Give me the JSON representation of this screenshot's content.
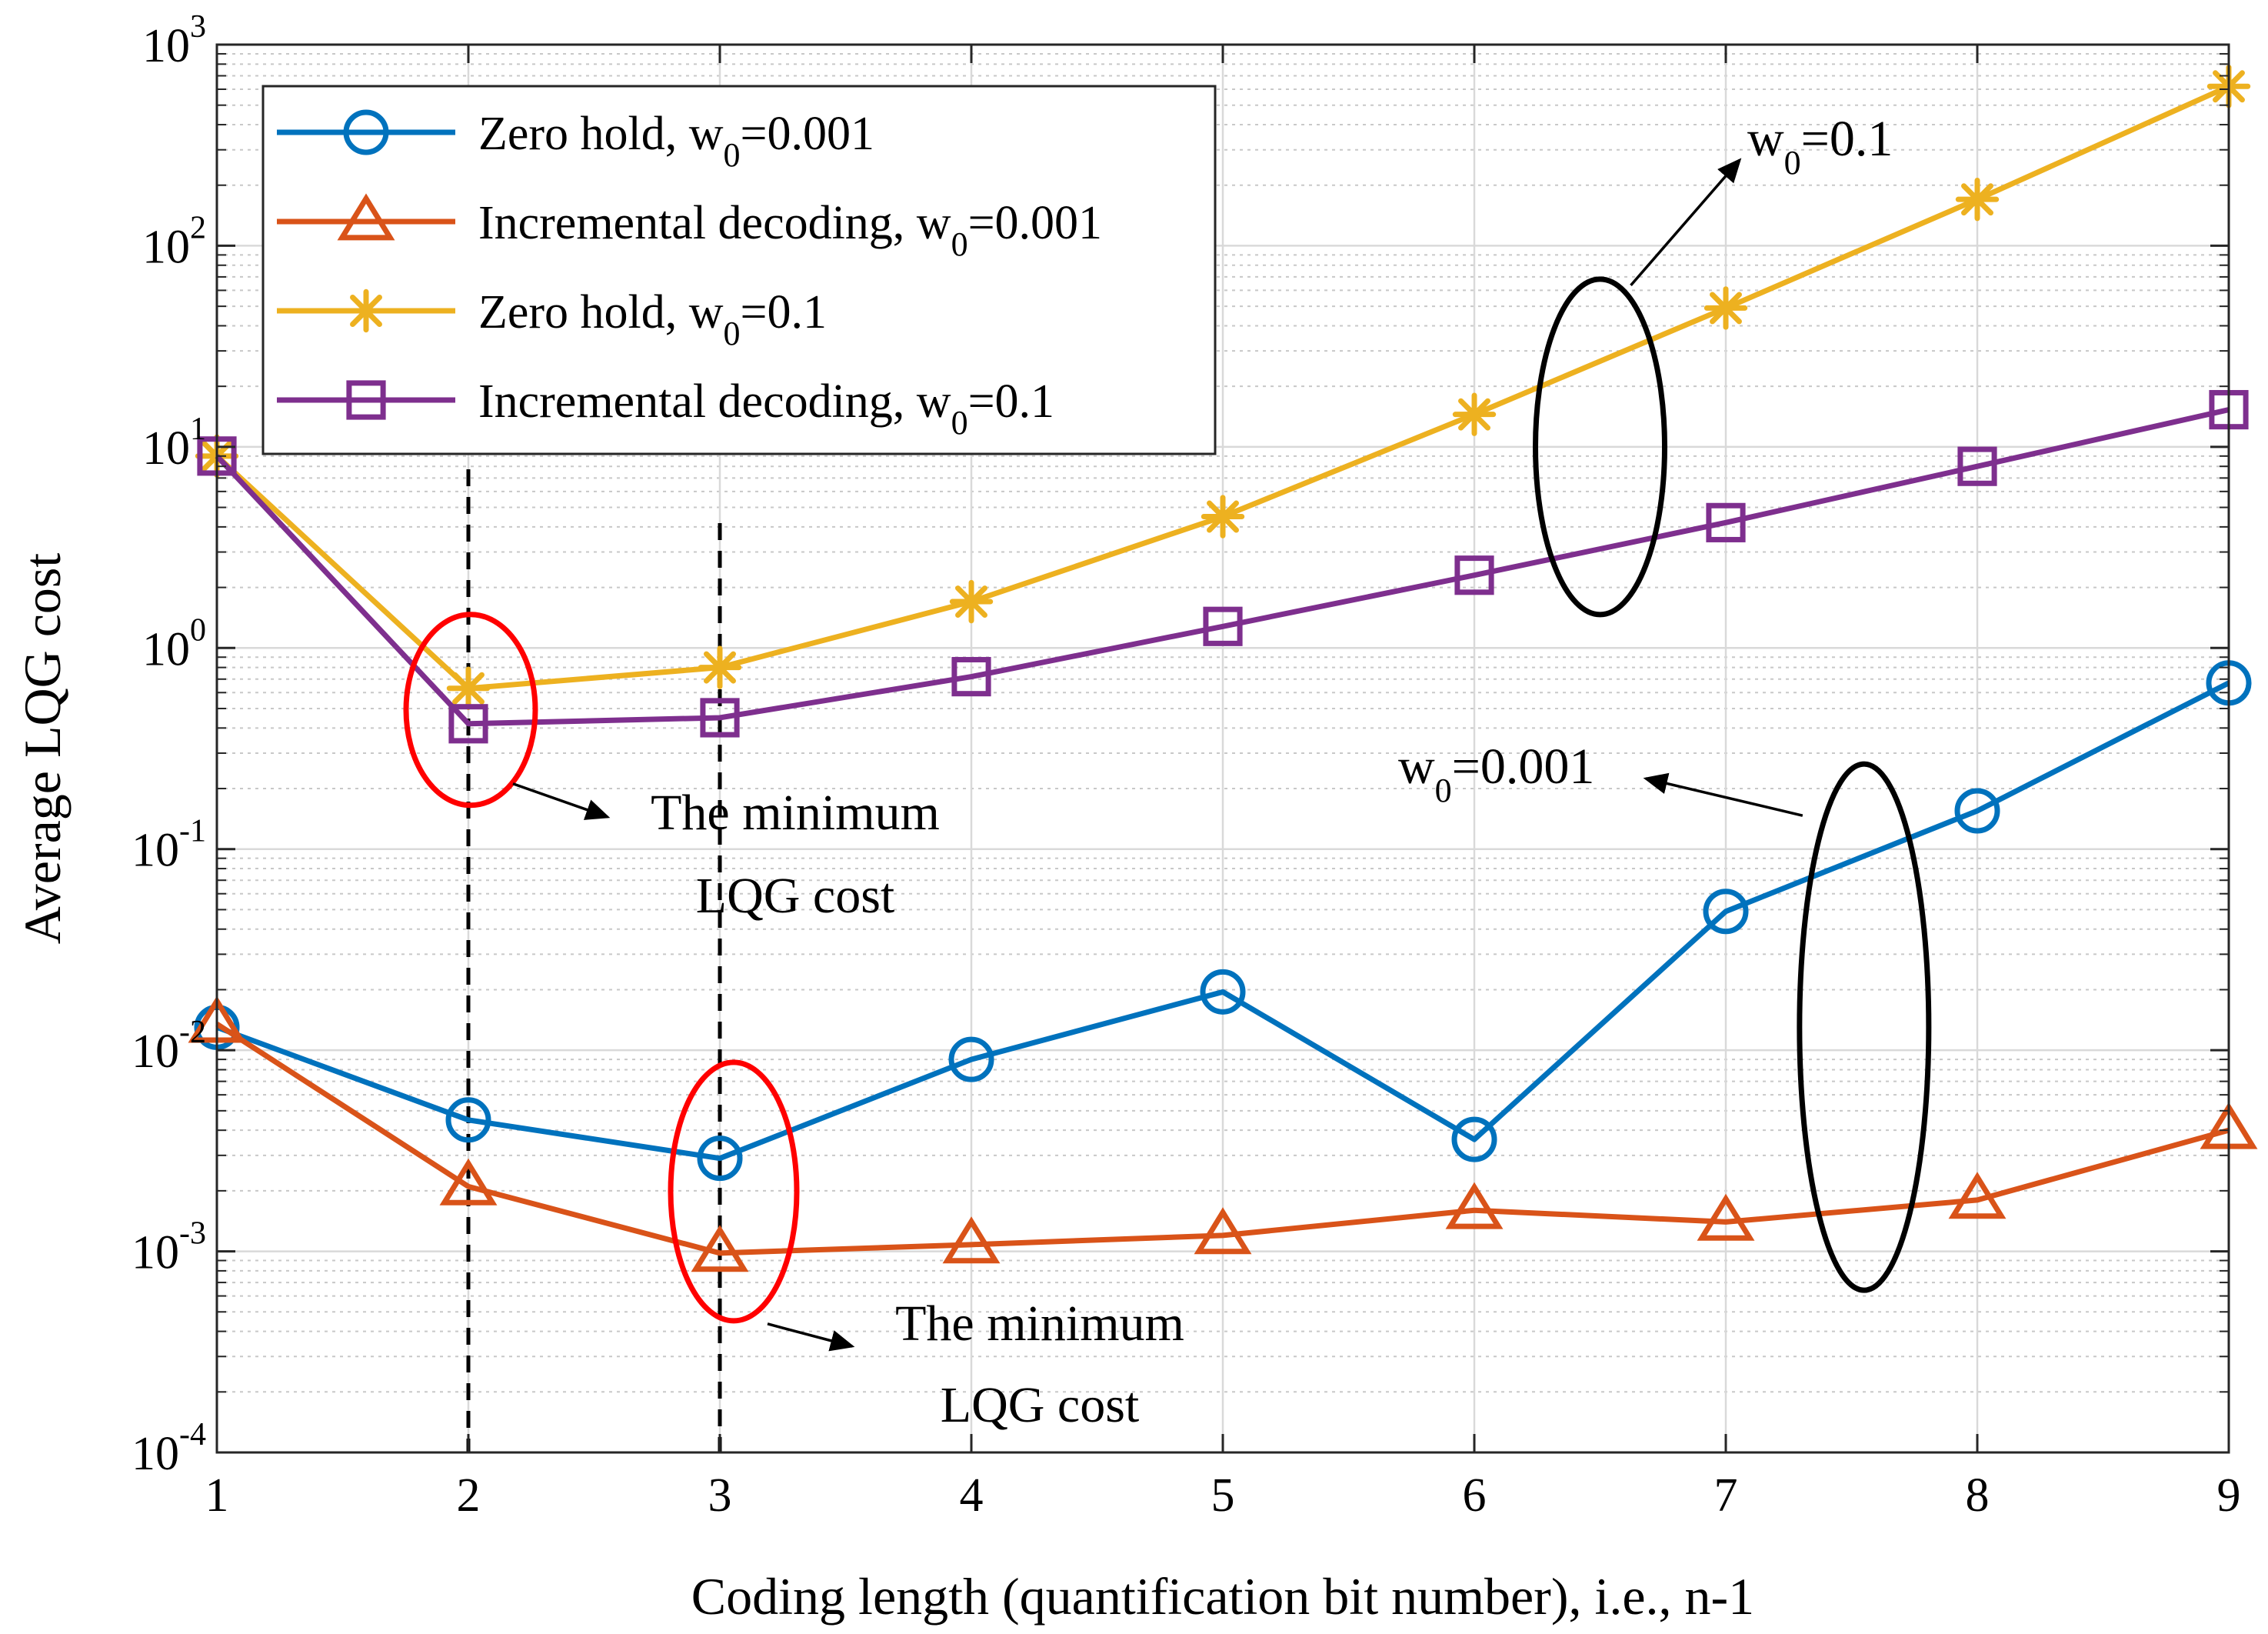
{
  "chart_data": {
    "type": "line",
    "title": "",
    "xlabel": "Coding length (quantification bit number), i.e., n-1",
    "ylabel": "Average LQG cost",
    "yscale": "log",
    "xlim": [
      1,
      9
    ],
    "ylim": [
      0.0001,
      1000
    ],
    "grid": true,
    "x": [
      1,
      2,
      3,
      4,
      5,
      6,
      7,
      8,
      9
    ],
    "x_ticks": [
      {
        "value": 1,
        "label": "1"
      },
      {
        "value": 2,
        "label": "2"
      },
      {
        "value": 3,
        "label": "3"
      },
      {
        "value": 4,
        "label": "4"
      },
      {
        "value": 5,
        "label": "5"
      },
      {
        "value": 6,
        "label": "6"
      },
      {
        "value": 7,
        "label": "7"
      },
      {
        "value": 8,
        "label": "8"
      },
      {
        "value": 9,
        "label": "9"
      }
    ],
    "y_ticks": [
      {
        "value": 0.0001,
        "base": "10",
        "exp": "-4"
      },
      {
        "value": 0.001,
        "base": "10",
        "exp": "-3"
      },
      {
        "value": 0.01,
        "base": "10",
        "exp": "-2"
      },
      {
        "value": 0.1,
        "base": "10",
        "exp": "-1"
      },
      {
        "value": 1,
        "base": "10",
        "exp": "0"
      },
      {
        "value": 10,
        "base": "10",
        "exp": "1"
      },
      {
        "value": 100,
        "base": "10",
        "exp": "2"
      },
      {
        "value": 1000,
        "base": "10",
        "exp": "3"
      }
    ],
    "legend_position": "top-left",
    "series": [
      {
        "name_main": "Zero hold, w",
        "name_sub": "0",
        "name_tail": "=0.001",
        "color": "#0072BD",
        "marker": "circle",
        "values": [
          0.013,
          0.0045,
          0.0029,
          0.009,
          0.0195,
          0.0036,
          0.049,
          0.155,
          0.67
        ]
      },
      {
        "name_main": "Incremental decoding, w",
        "name_sub": "0",
        "name_tail": "=0.001",
        "color": "#D95319",
        "marker": "triangle",
        "values": [
          0.0135,
          0.0021,
          0.00098,
          0.00108,
          0.0012,
          0.0016,
          0.0014,
          0.0018,
          0.004
        ]
      },
      {
        "name_main": "Zero hold, w",
        "name_sub": "0",
        "name_tail": "=0.1",
        "color": "#EDB120",
        "marker": "asterisk",
        "values": [
          9,
          0.63,
          0.8,
          1.7,
          4.5,
          14.5,
          49,
          170,
          620
        ]
      },
      {
        "name_main": "Incremental decoding, w",
        "name_sub": "0",
        "name_tail": "=0.1",
        "color": "#7E2F8E",
        "marker": "square",
        "values": [
          9,
          0.42,
          0.45,
          0.72,
          1.28,
          2.3,
          4.2,
          8.0,
          15.3
        ]
      }
    ],
    "reference_lines_x": [
      2,
      3
    ],
    "annotations": [
      {
        "id": "w01",
        "text_main": "w",
        "text_sub": "0",
        "text_tail": "=0.1",
        "x": 7.4,
        "y": 110
      },
      {
        "id": "w0001",
        "text_main": "w",
        "text_sub": "0",
        "text_tail": "=0.001",
        "x": 5.7,
        "y": 0.38
      },
      {
        "id": "min1",
        "line1": "The minimum",
        "line2": "LQG cost",
        "x": 2.6,
        "y": 0.16
      },
      {
        "id": "min2",
        "line1": "The minimum",
        "line2": "LQG cost",
        "x": 4.2,
        "y": 0.00043
      }
    ]
  }
}
